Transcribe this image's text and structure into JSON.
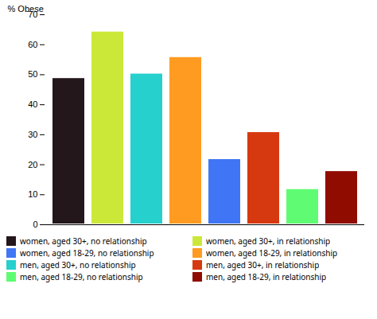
{
  "chart_data": {
    "type": "bar",
    "ylabel": "% Obese",
    "categories": [
      null,
      null,
      null,
      null,
      null,
      null,
      null,
      null
    ],
    "series": [
      {
        "name": "women, aged 30+, no relationship",
        "values": [
          49,
          null,
          null,
          null,
          null,
          null,
          null,
          null
        ]
      },
      {
        "name": "women, aged 18-29, no relationship",
        "values": [
          null,
          null,
          null,
          null,
          22,
          null,
          null,
          null
        ]
      },
      {
        "name": "men, aged 30+, no relationship",
        "values": [
          null,
          null,
          50.5,
          null,
          null,
          null,
          null,
          null
        ]
      },
      {
        "name": "men, aged 18-29, no relationship",
        "values": [
          null,
          null,
          null,
          null,
          null,
          null,
          12,
          null
        ]
      },
      {
        "name": "women, aged 30+, in relationship",
        "values": [
          null,
          64.5,
          null,
          null,
          null,
          null,
          null,
          null
        ]
      },
      {
        "name": "women, aged 18-29, in relationship",
        "values": [
          null,
          null,
          null,
          56,
          null,
          null,
          null,
          null
        ]
      },
      {
        "name": "men, aged 30+, in relationship",
        "values": [
          null,
          null,
          null,
          null,
          null,
          31,
          null,
          null
        ]
      },
      {
        "name": "men, aged 18-29, in relationship",
        "values": [
          null,
          null,
          null,
          null,
          null,
          null,
          null,
          18
        ]
      }
    ],
    "ylim": [
      0,
      70
    ],
    "yticks": [
      0,
      10,
      20,
      30,
      40,
      50,
      60,
      70
    ],
    "tick_labels": "y",
    "legend": "bottom"
  }
}
